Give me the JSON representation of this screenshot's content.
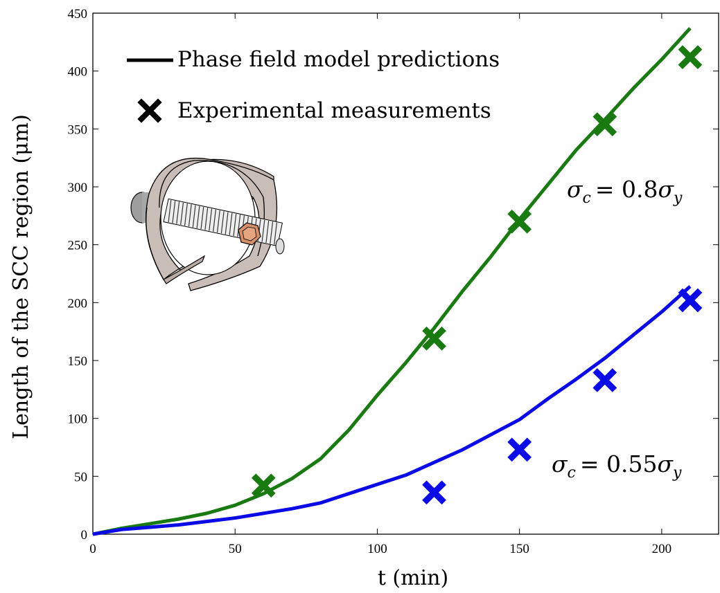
{
  "chart_data": {
    "type": "line",
    "xlabel": "t (min)",
    "ylabel": "Length of the SCC region (μm)",
    "xlim": [
      0,
      220
    ],
    "ylim": [
      0,
      450
    ],
    "xticks": [
      0,
      50,
      100,
      150,
      200
    ],
    "yticks": [
      0,
      50,
      100,
      150,
      200,
      250,
      300,
      350,
      400,
      450
    ],
    "grid": false,
    "legend": {
      "placement": "top-left",
      "entries": [
        {
          "label": "Phase field model predictions",
          "marker": "line",
          "color": "#000000"
        },
        {
          "label": "Experimental measurements",
          "marker": "x",
          "color": "#000000"
        }
      ]
    },
    "series": [
      {
        "kind": "line",
        "color": "#1a7a12",
        "x": [
          0,
          10,
          20,
          30,
          40,
          50,
          60,
          70,
          80,
          90,
          100,
          110,
          120,
          130,
          140,
          150,
          160,
          170,
          180,
          190,
          200,
          210
        ],
        "values": [
          0,
          5,
          9,
          13,
          18,
          25,
          35,
          48,
          65,
          90,
          120,
          148,
          178,
          210,
          240,
          272,
          302,
          332,
          358,
          385,
          410,
          437
        ]
      },
      {
        "kind": "line",
        "color": "#0a0ae6",
        "x": [
          0,
          10,
          20,
          30,
          40,
          50,
          60,
          70,
          80,
          90,
          100,
          110,
          120,
          130,
          140,
          150,
          160,
          170,
          180,
          190,
          200,
          210
        ],
        "values": [
          0,
          4,
          6,
          8,
          11,
          14,
          18,
          22,
          27,
          35,
          43,
          51,
          62,
          73,
          86,
          99,
          117,
          134,
          152,
          172,
          192,
          214
        ]
      },
      {
        "kind": "scatter",
        "color": "#1a7a12",
        "x": [
          60,
          120,
          150,
          180,
          210
        ],
        "values": [
          42,
          169,
          270,
          354,
          412
        ]
      },
      {
        "kind": "scatter",
        "color": "#0a0ae6",
        "x": [
          120,
          150,
          180,
          210
        ],
        "values": [
          36,
          73,
          133,
          202
        ]
      }
    ],
    "annotations": [
      {
        "label": "σc = 0.8σy",
        "sub1": "c",
        "sub2": "y",
        "coef": "= 0.8",
        "anchor_x": 210,
        "anchor_y": 300
      },
      {
        "label": "σc = 0.55σy",
        "sub1": "c",
        "sub2": "y",
        "coef": "= 0.55",
        "anchor_x": 210,
        "anchor_y": 56
      }
    ]
  },
  "illustration": {
    "name": "c-ring specimen with bolt and nut",
    "icon": "c-ring-specimen-icon"
  }
}
